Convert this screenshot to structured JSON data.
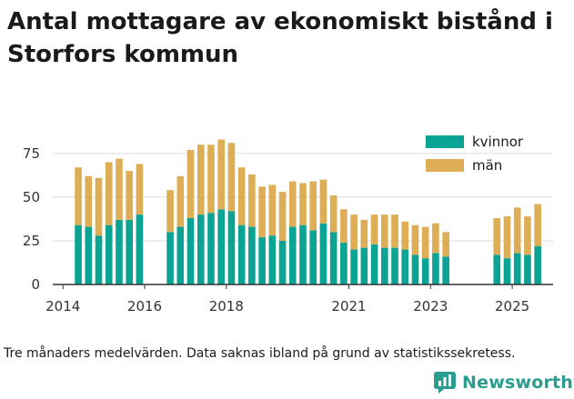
{
  "title": "Antal mottagare av ekonomiskt bistånd i Storfors kommun",
  "note": "Tre månaders medelvärden. Data saknas ibland på grund av statistikssekretess.",
  "brand": {
    "name": "Newsworthy",
    "icon": "newsworthy-logo-icon"
  },
  "colors": {
    "kvinnor": "#0aa394",
    "man": "#ddae55",
    "grid": "#dddddd",
    "axis": "#333333",
    "brand": "#2a9d8f"
  },
  "chart_data": {
    "type": "bar",
    "stacked": true,
    "title": "Antal mottagare av ekonomiskt bistånd i Storfors kommun",
    "xlabel": "",
    "ylabel": "",
    "ylim": [
      0,
      90
    ],
    "yticks": [
      0,
      25,
      50,
      75
    ],
    "xticks": [
      {
        "label": "2014",
        "x": 2014
      },
      {
        "label": "2016",
        "x": 2016
      },
      {
        "label": "2018",
        "x": 2018
      },
      {
        "label": "2021",
        "x": 2021
      },
      {
        "label": "2023",
        "x": 2023
      },
      {
        "label": "2025",
        "x": 2025
      }
    ],
    "legend": [
      "kvinnor",
      "män"
    ],
    "legend_position": "top-right",
    "x": [
      2014.375,
      2014.625,
      2014.875,
      2015.125,
      2015.375,
      2015.625,
      2015.875,
      2016.625,
      2016.875,
      2017.125,
      2017.375,
      2017.625,
      2017.875,
      2018.125,
      2018.375,
      2018.625,
      2018.875,
      2019.125,
      2019.375,
      2019.625,
      2019.875,
      2020.125,
      2020.375,
      2020.625,
      2020.875,
      2021.125,
      2021.375,
      2021.625,
      2021.875,
      2022.125,
      2022.375,
      2022.625,
      2022.875,
      2023.125,
      2023.375,
      2024.625,
      2024.875,
      2025.125,
      2025.375,
      2025.625
    ],
    "series": [
      {
        "name": "kvinnor",
        "values": [
          34,
          33,
          28,
          34,
          37,
          37,
          40,
          30,
          33,
          38,
          40,
          41,
          43,
          42,
          34,
          33,
          27,
          28,
          25,
          33,
          34,
          31,
          35,
          30,
          24,
          20,
          21,
          23,
          21,
          21,
          20,
          17,
          15,
          18,
          16,
          17,
          15,
          18,
          17,
          22
        ]
      },
      {
        "name": "män",
        "values": [
          33,
          29,
          33,
          36,
          35,
          28,
          29,
          24,
          29,
          39,
          40,
          39,
          40,
          39,
          33,
          30,
          29,
          29,
          28,
          26,
          24,
          28,
          25,
          21,
          19,
          20,
          16,
          17,
          19,
          19,
          16,
          17,
          18,
          17,
          14,
          21,
          24,
          26,
          22,
          24
        ]
      }
    ]
  }
}
